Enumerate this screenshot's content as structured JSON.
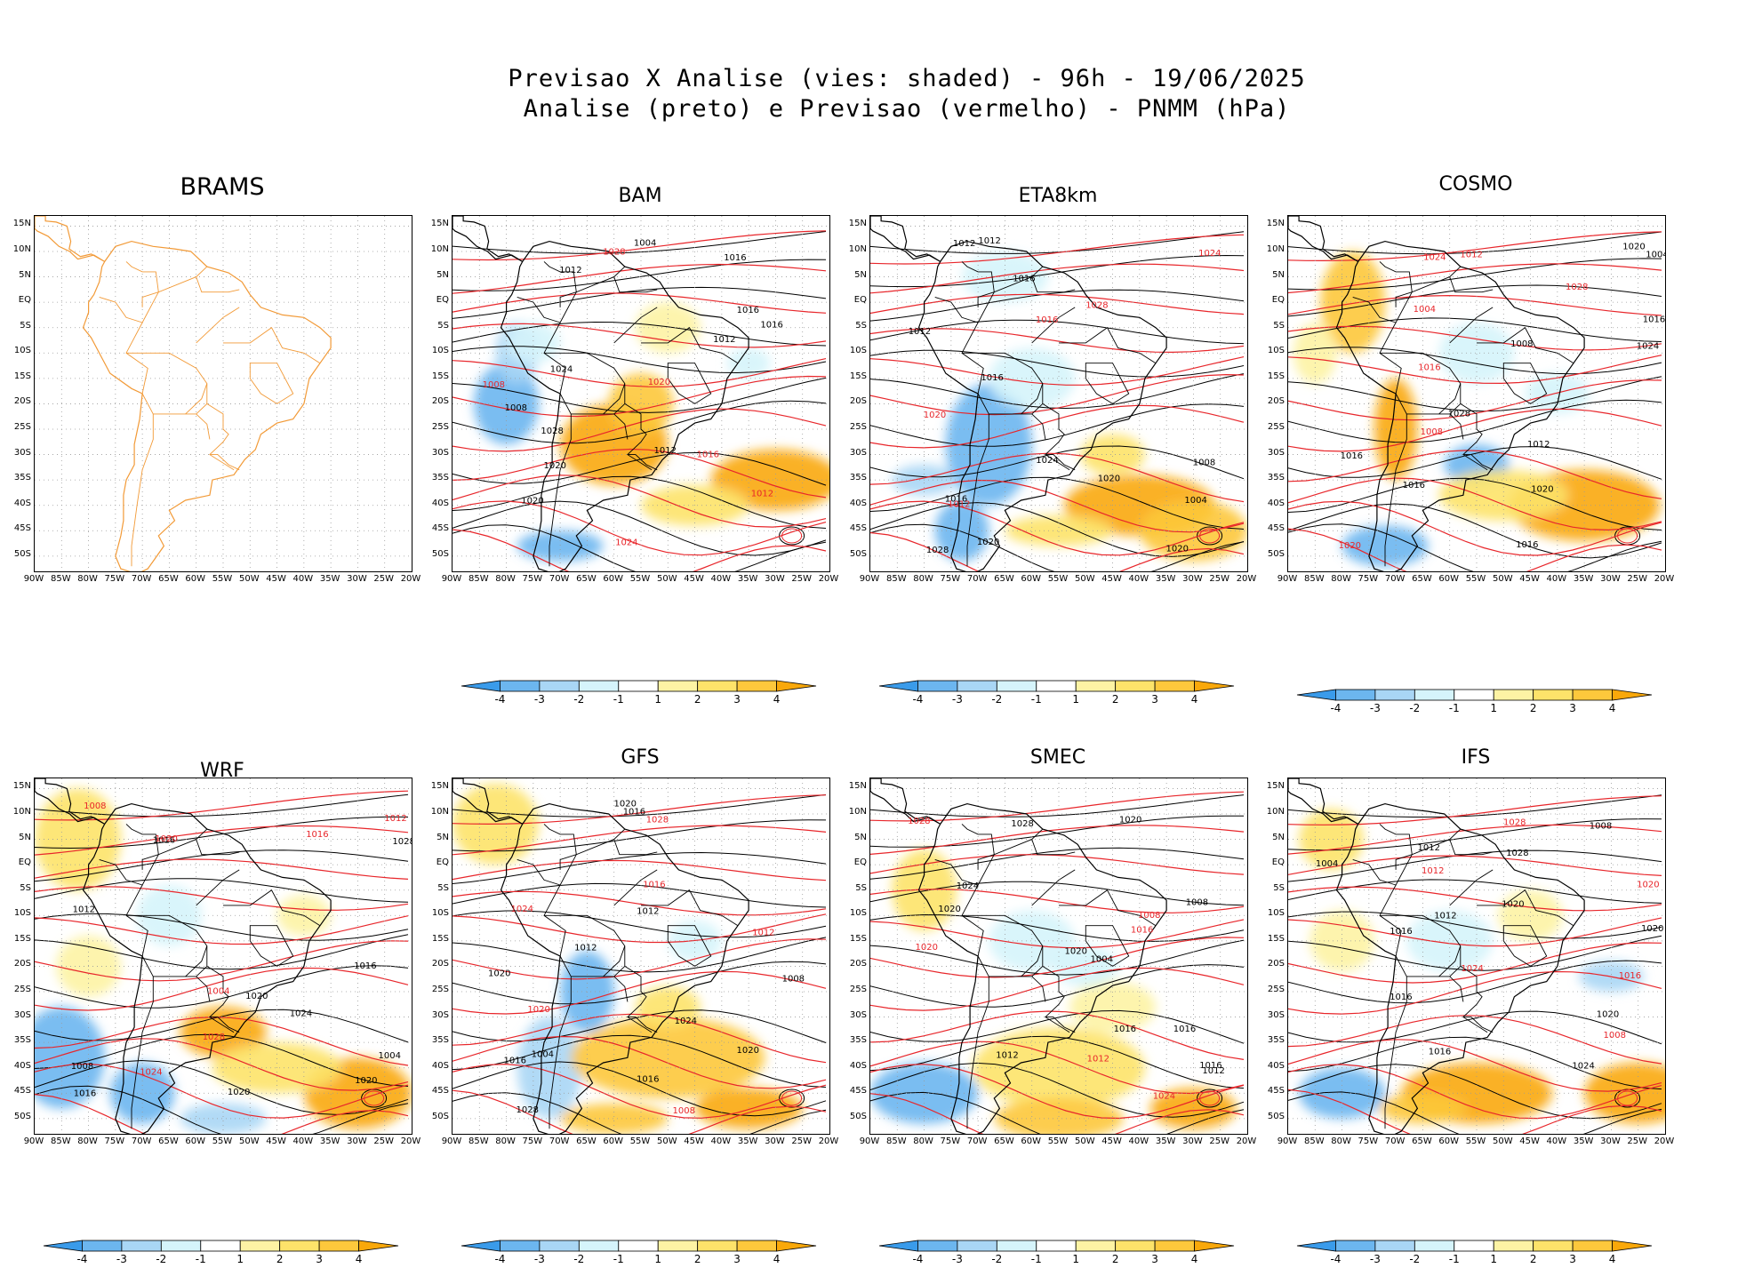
{
  "title": {
    "line1": "Previsao X Analise (vies: shaded) - 96h - 19/06/2025",
    "line2": "Analise (preto) e Previsao (vermelho) - PNMM (hPa)"
  },
  "lat_labels": [
    "15N",
    "10N",
    "5N",
    "EQ",
    "5S",
    "10S",
    "15S",
    "20S",
    "25S",
    "30S",
    "35S",
    "40S",
    "45S",
    "50S"
  ],
  "lon_labels": [
    "90W",
    "85W",
    "80W",
    "75W",
    "70W",
    "65W",
    "60W",
    "55W",
    "50W",
    "45W",
    "40W",
    "35W",
    "30W",
    "25W",
    "20W"
  ],
  "colorbar": {
    "labels": [
      "-4",
      "-3",
      "-2",
      "-1",
      "1",
      "2",
      "3",
      "4"
    ],
    "colors": [
      "#3a9bea",
      "#6cb6ef",
      "#a9d6f5",
      "#d5f4fb",
      "#ffffff",
      "#fdf3a4",
      "#fde36a",
      "#fdc83c",
      "#f9a80a"
    ]
  },
  "colors": {
    "analysis": "#000000",
    "forecast": "#e8262b",
    "brams_coast": "#f29a37"
  },
  "panels": [
    {
      "name": "BRAMS",
      "has_data": false,
      "has_colorbar": false,
      "labels": []
    },
    {
      "name": "BAM",
      "has_data": true,
      "has_colorbar": true,
      "labels": [
        {
          "t": "1020",
          "c": "k"
        },
        {
          "t": "1016",
          "c": "k"
        },
        {
          "t": "1012",
          "c": "k"
        },
        {
          "t": "1016",
          "c": "k"
        },
        {
          "t": "1012",
          "c": "k"
        },
        {
          "t": "1024",
          "c": "k"
        },
        {
          "t": "1028",
          "c": "k"
        },
        {
          "t": "1020",
          "c": "k"
        },
        {
          "t": "1016",
          "c": "k"
        },
        {
          "t": "1012",
          "c": "k"
        },
        {
          "t": "1008",
          "c": "k"
        },
        {
          "t": "1004",
          "c": "k"
        },
        {
          "t": "1016",
          "c": "r"
        },
        {
          "t": "1020",
          "c": "r"
        },
        {
          "t": "1024",
          "c": "r"
        },
        {
          "t": "1028",
          "c": "r"
        },
        {
          "t": "1012",
          "c": "r"
        },
        {
          "t": "1008",
          "c": "r"
        }
      ]
    },
    {
      "name": "ETA8km",
      "has_data": true,
      "has_colorbar": true,
      "labels": [
        {
          "t": "1020",
          "c": "k"
        },
        {
          "t": "1012",
          "c": "k"
        },
        {
          "t": "1016",
          "c": "k"
        },
        {
          "t": "1016",
          "c": "k"
        },
        {
          "t": "1012",
          "c": "k"
        },
        {
          "t": "1020",
          "c": "k"
        },
        {
          "t": "1024",
          "c": "k"
        },
        {
          "t": "1028",
          "c": "k"
        },
        {
          "t": "1020",
          "c": "k"
        },
        {
          "t": "1016",
          "c": "k"
        },
        {
          "t": "1012",
          "c": "k"
        },
        {
          "t": "1008",
          "c": "k"
        },
        {
          "t": "1004",
          "c": "k"
        },
        {
          "t": "1016",
          "c": "r"
        },
        {
          "t": "1020",
          "c": "r"
        },
        {
          "t": "1024",
          "c": "r"
        },
        {
          "t": "1028",
          "c": "r"
        },
        {
          "t": "1012",
          "c": "r"
        }
      ]
    },
    {
      "name": "COSMO",
      "has_data": true,
      "has_colorbar": true,
      "labels": [
        {
          "t": "1016",
          "c": "k"
        },
        {
          "t": "1016",
          "c": "k"
        },
        {
          "t": "1016",
          "c": "k"
        },
        {
          "t": "1020",
          "c": "k"
        },
        {
          "t": "1024",
          "c": "k"
        },
        {
          "t": "1028",
          "c": "k"
        },
        {
          "t": "1020",
          "c": "k"
        },
        {
          "t": "1016",
          "c": "k"
        },
        {
          "t": "1012",
          "c": "k"
        },
        {
          "t": "1008",
          "c": "k"
        },
        {
          "t": "1004",
          "c": "k"
        },
        {
          "t": "1016",
          "c": "r"
        },
        {
          "t": "1020",
          "c": "r"
        },
        {
          "t": "1024",
          "c": "r"
        },
        {
          "t": "1028",
          "c": "r"
        },
        {
          "t": "1012",
          "c": "r"
        },
        {
          "t": "1008",
          "c": "r"
        },
        {
          "t": "1004",
          "c": "r"
        }
      ]
    },
    {
      "name": "WRF",
      "has_data": true,
      "has_colorbar": true,
      "labels": [
        {
          "t": "1020",
          "c": "k"
        },
        {
          "t": "1016",
          "c": "k"
        },
        {
          "t": "1016",
          "c": "k"
        },
        {
          "t": "1020",
          "c": "k"
        },
        {
          "t": "1024",
          "c": "k"
        },
        {
          "t": "1028",
          "c": "k"
        },
        {
          "t": "1020",
          "c": "k"
        },
        {
          "t": "1016",
          "c": "k"
        },
        {
          "t": "1012",
          "c": "k"
        },
        {
          "t": "1008",
          "c": "k"
        },
        {
          "t": "1004",
          "c": "k"
        },
        {
          "t": "1016",
          "c": "r"
        },
        {
          "t": "1020",
          "c": "r"
        },
        {
          "t": "1024",
          "c": "r"
        },
        {
          "t": "1028",
          "c": "r"
        },
        {
          "t": "1012",
          "c": "r"
        },
        {
          "t": "1008",
          "c": "r"
        },
        {
          "t": "1004",
          "c": "r"
        }
      ]
    },
    {
      "name": "GFS",
      "has_data": true,
      "has_colorbar": true,
      "labels": [
        {
          "t": "1020",
          "c": "k"
        },
        {
          "t": "1016",
          "c": "k"
        },
        {
          "t": "1012",
          "c": "k"
        },
        {
          "t": "1016",
          "c": "k"
        },
        {
          "t": "1020",
          "c": "k"
        },
        {
          "t": "1024",
          "c": "k"
        },
        {
          "t": "1028",
          "c": "k"
        },
        {
          "t": "1020",
          "c": "k"
        },
        {
          "t": "1016",
          "c": "k"
        },
        {
          "t": "1012",
          "c": "k"
        },
        {
          "t": "1008",
          "c": "k"
        },
        {
          "t": "1004",
          "c": "k"
        },
        {
          "t": "1016",
          "c": "r"
        },
        {
          "t": "1020",
          "c": "r"
        },
        {
          "t": "1024",
          "c": "r"
        },
        {
          "t": "1028",
          "c": "r"
        },
        {
          "t": "1012",
          "c": "r"
        },
        {
          "t": "1008",
          "c": "r"
        }
      ]
    },
    {
      "name": "SMEC",
      "has_data": true,
      "has_colorbar": true,
      "labels": [
        {
          "t": "1020",
          "c": "k"
        },
        {
          "t": "1016",
          "c": "k"
        },
        {
          "t": "1012",
          "c": "k"
        },
        {
          "t": "1016",
          "c": "k"
        },
        {
          "t": "1020",
          "c": "k"
        },
        {
          "t": "1024",
          "c": "k"
        },
        {
          "t": "1028",
          "c": "k"
        },
        {
          "t": "1020",
          "c": "k"
        },
        {
          "t": "1016",
          "c": "k"
        },
        {
          "t": "1012",
          "c": "k"
        },
        {
          "t": "1008",
          "c": "k"
        },
        {
          "t": "1004",
          "c": "k"
        },
        {
          "t": "1016",
          "c": "r"
        },
        {
          "t": "1020",
          "c": "r"
        },
        {
          "t": "1024",
          "c": "r"
        },
        {
          "t": "1028",
          "c": "r"
        },
        {
          "t": "1012",
          "c": "r"
        },
        {
          "t": "1008",
          "c": "r"
        }
      ]
    },
    {
      "name": "IFS",
      "has_data": true,
      "has_colorbar": true,
      "labels": [
        {
          "t": "1020",
          "c": "k"
        },
        {
          "t": "1016",
          "c": "k"
        },
        {
          "t": "1012",
          "c": "k"
        },
        {
          "t": "1016",
          "c": "k"
        },
        {
          "t": "1020",
          "c": "k"
        },
        {
          "t": "1024",
          "c": "k"
        },
        {
          "t": "1028",
          "c": "k"
        },
        {
          "t": "1020",
          "c": "k"
        },
        {
          "t": "1016",
          "c": "k"
        },
        {
          "t": "1012",
          "c": "k"
        },
        {
          "t": "1008",
          "c": "k"
        },
        {
          "t": "1004",
          "c": "k"
        },
        {
          "t": "1016",
          "c": "r"
        },
        {
          "t": "1020",
          "c": "r"
        },
        {
          "t": "1024",
          "c": "r"
        },
        {
          "t": "1028",
          "c": "r"
        },
        {
          "t": "1012",
          "c": "r"
        },
        {
          "t": "1008",
          "c": "r"
        }
      ]
    }
  ]
}
